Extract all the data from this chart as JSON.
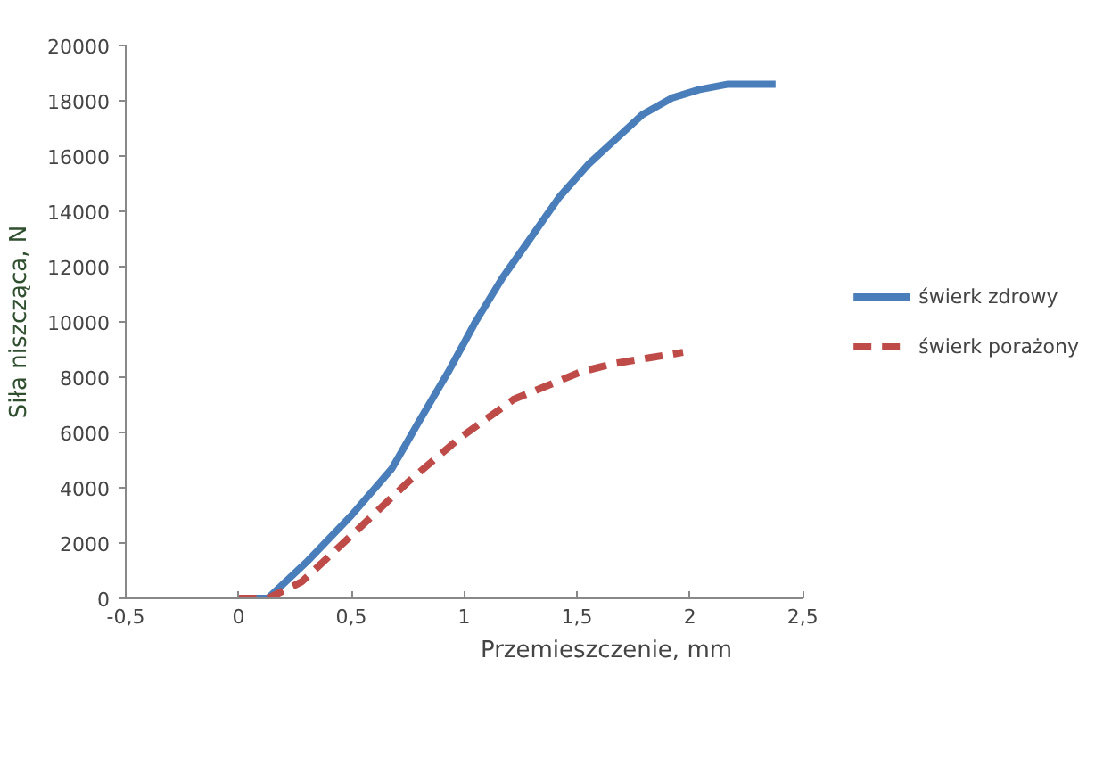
{
  "chart_data": {
    "type": "line",
    "xlabel": "Przemieszczenie, mm",
    "ylabel": "Siła niszcząca, N",
    "xlim": [
      -0.5,
      2.5
    ],
    "xticks": [
      {
        "value": -0.5,
        "label": "-0,5"
      },
      0,
      {
        "value": 0.5,
        "label": "0,5"
      },
      1,
      {
        "value": 1.5,
        "label": "1,5"
      },
      2,
      {
        "value": 2.5,
        "label": "2,5"
      }
    ],
    "ylim": [
      0,
      20000
    ],
    "yticks": [
      0,
      2000,
      4000,
      6000,
      8000,
      10000,
      12000,
      14000,
      16000,
      18000,
      20000
    ],
    "grid": false,
    "legend": "right",
    "series": [
      {
        "name": "świerk zdrowy",
        "color": "#4a7ebb",
        "line_style": "solid",
        "x": [
          0,
          0.13,
          0.3,
          0.5,
          0.68,
          0.8,
          0.93,
          1.05,
          1.17,
          1.3,
          1.42,
          1.55,
          1.67,
          1.79,
          1.92,
          2.04,
          2.17,
          2.38
        ],
        "values": [
          0,
          0,
          1300,
          3000,
          4700,
          6400,
          8200,
          10000,
          11600,
          13100,
          14500,
          15700,
          16600,
          17500,
          18100,
          18400,
          18600,
          18600
        ]
      },
      {
        "name": "świerk porażony",
        "color": "#be4b48",
        "line_style": "dashed",
        "x": [
          0,
          0.13,
          0.28,
          0.53,
          0.75,
          0.98,
          1.22,
          1.52,
          1.67,
          1.82,
          1.97
        ],
        "values": [
          0,
          0,
          600,
          2500,
          4200,
          5800,
          7200,
          8200,
          8500,
          8700,
          8900
        ]
      }
    ]
  }
}
